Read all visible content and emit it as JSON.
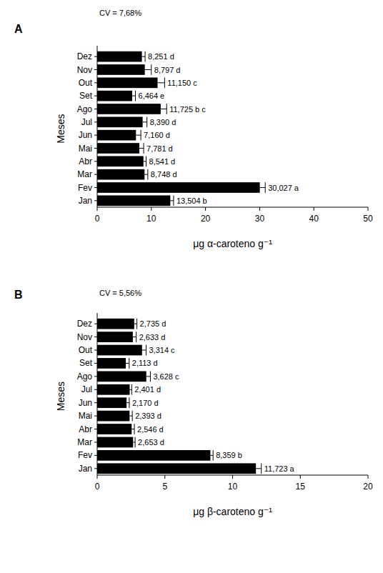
{
  "chart_data": [
    {
      "type": "bar",
      "title": "A",
      "annotations": [
        "CV = 7,68%"
      ],
      "orientation": "horizontal",
      "data_labels": true,
      "color": "#000000",
      "y_label": "Meses",
      "x_label": "μg α-caroteno g⁻¹",
      "categories": [
        "Jan",
        "Fev",
        "Mar",
        "Abr",
        "Mai",
        "Jun",
        "Jul",
        "Ago",
        "Set",
        "Out",
        "Nov",
        "Dez"
      ],
      "values": [
        13.504,
        30.027,
        8.748,
        8.541,
        7.781,
        7.16,
        8.39,
        11.725,
        6.464,
        11.15,
        8.797,
        8.251
      ],
      "value_labels": [
        "13,504 b",
        "30,027 a",
        "8,748 d",
        "8,541 d",
        "7,781 d",
        "7,160 d",
        "8,390 d",
        "11,725 b c",
        "6,464 e",
        "11,150 c",
        "8,797 d",
        "8,251 d"
      ],
      "errors": [
        0.6,
        1.0,
        0.6,
        0.5,
        0.8,
        0.9,
        0.8,
        1.1,
        0.6,
        1.3,
        1.2,
        0.6
      ],
      "xlim": [
        0,
        50
      ],
      "xticks": [
        0,
        10,
        20,
        30,
        40,
        50
      ]
    },
    {
      "type": "bar",
      "title": "B",
      "annotations": [
        "CV = 5,56%"
      ],
      "orientation": "horizontal",
      "data_labels": true,
      "color": "#000000",
      "y_label": "Meses",
      "x_label": "μg β-caroteno g⁻¹",
      "categories": [
        "Jan",
        "Fev",
        "Mar",
        "Abr",
        "Mai",
        "Jun",
        "Jul",
        "Ago",
        "Set",
        "Out",
        "Nov",
        "Dez"
      ],
      "values": [
        11.723,
        8.359,
        2.653,
        2.546,
        2.393,
        2.17,
        2.401,
        3.628,
        2.113,
        3.314,
        2.633,
        2.735
      ],
      "value_labels": [
        "11,723 a",
        "8,359 b",
        "2,653 d",
        "2,546 d",
        "2,393 d",
        "2,170 d",
        "2,401 d",
        "3,628 c",
        "2,113 d",
        "3,314 c",
        "2,633 d",
        "2,735 d"
      ],
      "errors": [
        0.4,
        0.2,
        0.15,
        0.2,
        0.2,
        0.2,
        0.15,
        0.3,
        0.25,
        0.3,
        0.25,
        0.2
      ],
      "xlim": [
        0,
        20
      ],
      "xticks": [
        0,
        5,
        10,
        15,
        20
      ]
    }
  ]
}
